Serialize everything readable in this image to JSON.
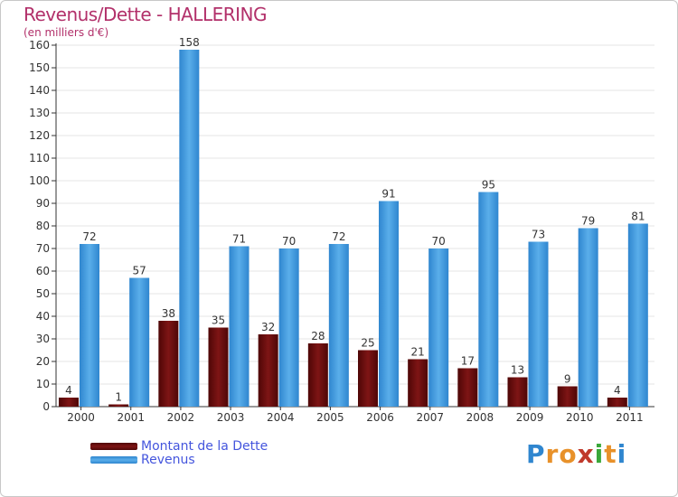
{
  "colors": {
    "dette": "#6b0d0d",
    "revenus": "#3a93db",
    "title": "#b2306a",
    "legend_text": "#4455dd"
  },
  "logo": {
    "text": "Proxiti"
  },
  "chart_data": {
    "type": "bar",
    "title": "Revenus/Dette - HALLERING",
    "subtitle": "(en milliers d'€)",
    "categories": [
      "2000",
      "2001",
      "2002",
      "2003",
      "2004",
      "2005",
      "2006",
      "2007",
      "2008",
      "2009",
      "2010",
      "2011"
    ],
    "series": [
      {
        "name": "Montant de la Dette",
        "values": [
          4,
          1,
          38,
          35,
          32,
          28,
          25,
          21,
          17,
          13,
          9,
          4
        ]
      },
      {
        "name": "Revenus",
        "values": [
          72,
          57,
          158,
          71,
          70,
          72,
          91,
          70,
          95,
          73,
          79,
          81
        ]
      }
    ],
    "ylim": [
      0,
      160
    ],
    "yticks": [
      0,
      10,
      20,
      30,
      40,
      50,
      60,
      70,
      80,
      90,
      100,
      110,
      120,
      130,
      140,
      150,
      160
    ],
    "xlabel": "",
    "ylabel": "",
    "legend_position": "bottom-left"
  }
}
